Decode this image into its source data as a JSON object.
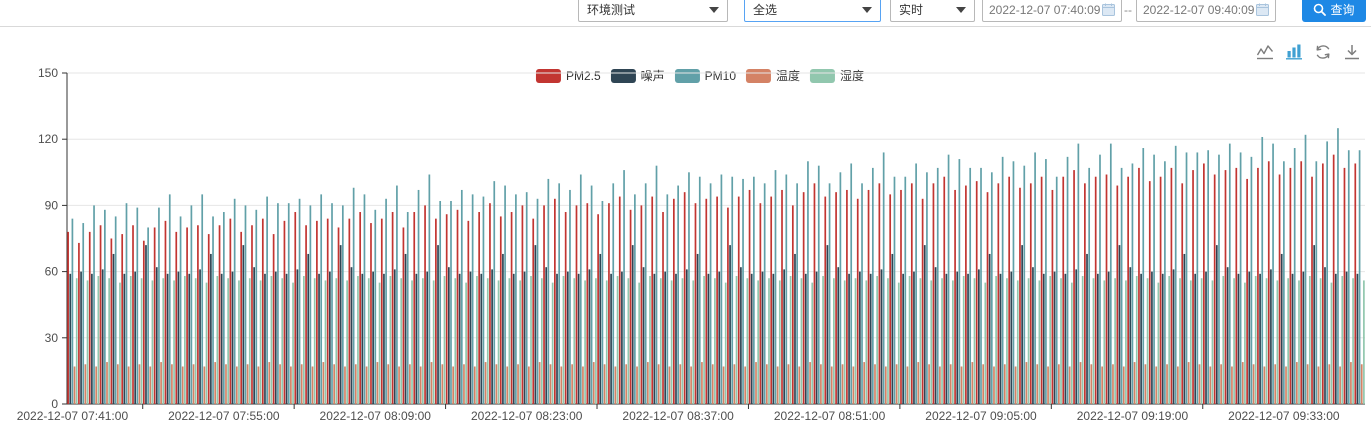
{
  "toolbar": {
    "device_select": "环境测试",
    "channel_select": "全选",
    "mode_select": "实时",
    "date_from": "2022-12-07 07:40:09",
    "date_separator": "--",
    "date_to": "2022-12-07 09:40:09",
    "query_label": "查询"
  },
  "chart": {
    "legend": [
      {
        "label": "PM2.5",
        "color": "#c23531"
      },
      {
        "label": "噪声",
        "color": "#2f4554"
      },
      {
        "label": "PM10",
        "color": "#61a0a8"
      },
      {
        "label": "温度",
        "color": "#d48265"
      },
      {
        "label": "湿度",
        "color": "#91c7ae"
      }
    ],
    "toolbox": {
      "line_icon_color": "#7d7d7d",
      "bar_icon_color": "#3fa0d2",
      "restore_icon_color": "#7d7d7d",
      "download_icon_color": "#7d7d7d"
    },
    "axis_color": "#333333",
    "grid_color": "#e6e6e6",
    "label_color": "#4e4e4e"
  },
  "chart_data": {
    "type": "bar",
    "title": "",
    "xlabel": "",
    "ylabel": "",
    "ylim": [
      0,
      150
    ],
    "y_ticks": [
      0,
      30,
      60,
      90,
      120,
      150
    ],
    "x_count": 120,
    "x_tick_interval": 14,
    "x_tick_labels": [
      "2022-12-07 07:41:00",
      "2022-12-07 07:55:00",
      "2022-12-07 08:09:00",
      "2022-12-07 08:23:00",
      "2022-12-07 08:37:00",
      "2022-12-07 08:51:00",
      "2022-12-07 09:05:00",
      "2022-12-07 09:19:00",
      "2022-12-07 09:33:00"
    ],
    "legend_position": "top-center",
    "grid": true,
    "series": [
      {
        "name": "PM2.5",
        "color": "#c23531",
        "values": [
          78,
          73,
          78,
          81,
          75,
          77,
          81,
          74,
          80,
          83,
          78,
          80,
          81,
          77,
          81,
          84,
          78,
          81,
          84,
          77,
          83,
          87,
          81,
          83,
          84,
          80,
          84,
          87,
          82,
          84,
          87,
          80,
          87,
          90,
          84,
          86,
          88,
          83,
          87,
          91,
          85,
          87,
          90,
          84,
          90,
          93,
          87,
          90,
          91,
          86,
          91,
          94,
          88,
          90,
          94,
          87,
          93,
          96,
          91,
          93,
          94,
          89,
          94,
          97,
          91,
          94,
          97,
          90,
          96,
          100,
          94,
          96,
          97,
          93,
          97,
          100,
          95,
          97,
          100,
          93,
          100,
          103,
          97,
          99,
          101,
          96,
          100,
          103,
          98,
          100,
          103,
          97,
          103,
          106,
          100,
          103,
          104,
          99,
          103,
          107,
          101,
          103,
          107,
          100,
          106,
          109,
          104,
          106,
          107,
          102,
          107,
          110,
          104,
          107,
          110,
          103,
          109,
          113,
          107,
          109
        ]
      },
      {
        "name": "噪声",
        "color": "#2f4554",
        "values": [
          59,
          60,
          59,
          61,
          68,
          59,
          60,
          72,
          62,
          59,
          60,
          59,
          61,
          68,
          59,
          60,
          72,
          62,
          59,
          60,
          59,
          61,
          68,
          59,
          60,
          72,
          62,
          59,
          60,
          59,
          61,
          68,
          59,
          60,
          72,
          62,
          59,
          60,
          59,
          61,
          68,
          59,
          60,
          72,
          62,
          59,
          60,
          59,
          61,
          68,
          59,
          60,
          72,
          62,
          59,
          60,
          59,
          61,
          68,
          59,
          60,
          72,
          62,
          59,
          60,
          59,
          61,
          68,
          59,
          60,
          72,
          62,
          59,
          60,
          59,
          61,
          68,
          59,
          60,
          72,
          62,
          59,
          60,
          59,
          61,
          68,
          59,
          60,
          72,
          62,
          59,
          60,
          59,
          61,
          68,
          59,
          60,
          72,
          62,
          59,
          60,
          59,
          61,
          68,
          59,
          60,
          72,
          62,
          59,
          60,
          59,
          61,
          68,
          59,
          60,
          72,
          62,
          59,
          60,
          59
        ]
      },
      {
        "name": "PM10",
        "color": "#61a0a8",
        "values": [
          84,
          82,
          90,
          88,
          85,
          91,
          89,
          80,
          89,
          95,
          85,
          90,
          95,
          85,
          87,
          93,
          90,
          88,
          94,
          91,
          91,
          93,
          90,
          95,
          91,
          90,
          98,
          95,
          88,
          93,
          99,
          87,
          97,
          104,
          92,
          92,
          97,
          95,
          94,
          101,
          99,
          95,
          96,
          93,
          102,
          100,
          97,
          104,
          99,
          92,
          100,
          106,
          95,
          100,
          108,
          95,
          99,
          105,
          103,
          100,
          104,
          103,
          102,
          103,
          100,
          106,
          104,
          100,
          110,
          108,
          100,
          105,
          109,
          100,
          107,
          114,
          103,
          103,
          109,
          105,
          107,
          113,
          111,
          107,
          107,
          105,
          112,
          110,
          108,
          114,
          111,
          103,
          112,
          118,
          107,
          113,
          118,
          107,
          109,
          116,
          113,
          110,
          117,
          114,
          114,
          115,
          113,
          118,
          114,
          112,
          121,
          118,
          110,
          116,
          122,
          110,
          119,
          125,
          115,
          115
        ]
      },
      {
        "name": "温度",
        "color": "#d48265",
        "values": [
          17,
          18,
          17,
          19,
          18,
          17,
          18,
          17,
          19,
          18,
          17,
          18,
          17,
          19,
          18,
          17,
          18,
          17,
          19,
          18,
          17,
          18,
          17,
          19,
          18,
          17,
          18,
          17,
          19,
          18,
          17,
          18,
          17,
          19,
          18,
          17,
          18,
          17,
          19,
          18,
          17,
          18,
          17,
          19,
          18,
          17,
          18,
          17,
          19,
          18,
          17,
          18,
          17,
          19,
          18,
          17,
          18,
          17,
          19,
          18,
          17,
          18,
          17,
          19,
          18,
          17,
          18,
          17,
          19,
          18,
          17,
          18,
          17,
          19,
          18,
          17,
          18,
          17,
          19,
          18,
          17,
          18,
          17,
          19,
          18,
          17,
          18,
          17,
          19,
          18,
          17,
          18,
          17,
          19,
          18,
          17,
          18,
          17,
          19,
          18,
          17,
          18,
          17,
          19,
          18,
          17,
          18,
          17,
          19,
          18,
          17,
          18,
          17,
          19,
          18,
          17,
          18,
          17,
          19,
          18
        ]
      },
      {
        "name": "湿度",
        "color": "#91c7ae",
        "values": [
          57,
          56,
          58,
          57,
          55,
          58,
          57,
          56,
          57,
          56,
          58,
          57,
          55,
          58,
          57,
          56,
          57,
          56,
          58,
          57,
          55,
          58,
          57,
          56,
          57,
          56,
          58,
          57,
          55,
          58,
          57,
          56,
          57,
          56,
          58,
          57,
          55,
          58,
          57,
          56,
          57,
          56,
          58,
          57,
          55,
          58,
          57,
          56,
          57,
          56,
          58,
          57,
          55,
          58,
          57,
          56,
          57,
          56,
          58,
          57,
          55,
          58,
          57,
          56,
          57,
          56,
          58,
          57,
          55,
          58,
          57,
          56,
          57,
          56,
          58,
          57,
          55,
          58,
          57,
          56,
          57,
          56,
          58,
          57,
          55,
          58,
          57,
          56,
          57,
          56,
          58,
          57,
          55,
          58,
          57,
          56,
          57,
          56,
          58,
          57,
          55,
          58,
          57,
          56,
          57,
          56,
          58,
          57,
          55,
          58,
          57,
          56,
          57,
          56,
          58,
          57,
          55,
          58,
          57,
          56
        ]
      }
    ]
  }
}
